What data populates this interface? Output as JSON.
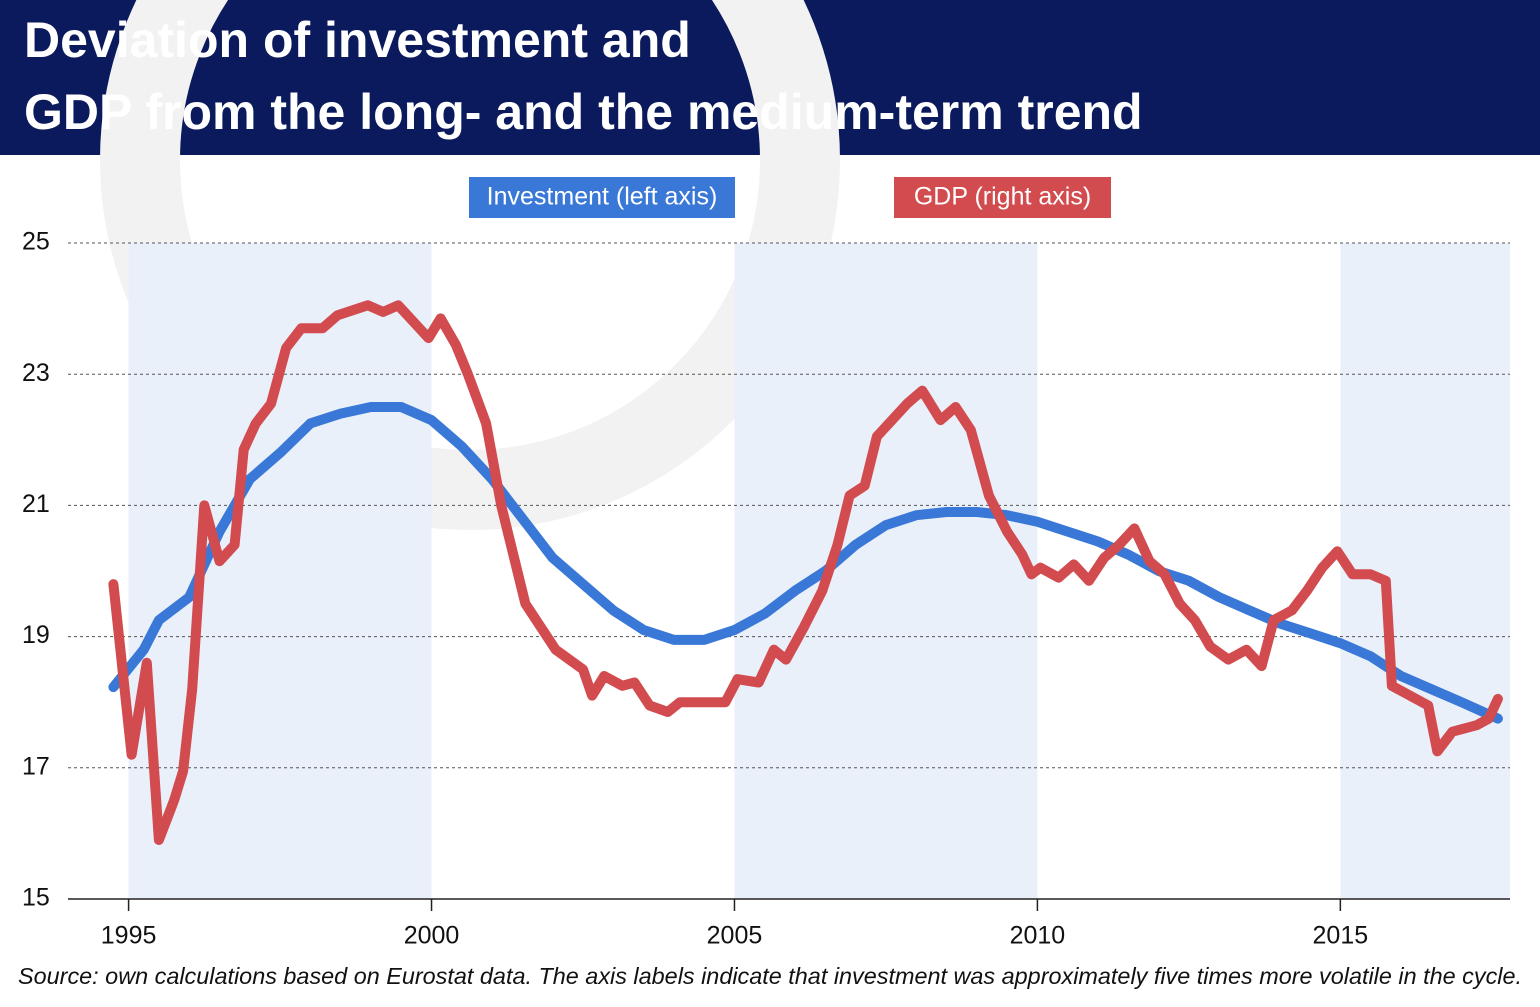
{
  "chart_data": {
    "type": "line",
    "title": "Deviation of investment and GDP from the long- and the medium-term trend",
    "source": "Source: own calculations based on Eurostat data. The axis labels indicate that investment was approximately five times more volatile in the cycle.",
    "xlim": [
      1994,
      2017.8
    ],
    "xticks": [
      1995,
      2000,
      2005,
      2010,
      2015
    ],
    "ylim": [
      15,
      25
    ],
    "yticks": [
      15,
      17,
      19,
      21,
      23,
      25
    ],
    "grid": true,
    "shaded_periods": [
      [
        1995,
        2000
      ],
      [
        2005,
        2010
      ],
      [
        2015,
        2017.8
      ]
    ],
    "series": [
      {
        "name": "Investment (left axis)",
        "color": "#3a78d8",
        "x": [
          1994.75,
          1995.25,
          1995.5,
          1996,
          1996.5,
          1997,
          1997.5,
          1998,
          1998.5,
          1999,
          1999.5,
          2000,
          2000.5,
          2001,
          2001.5,
          2002,
          2002.5,
          2003,
          2003.5,
          2004,
          2004.5,
          2005,
          2005.5,
          2006,
          2006.5,
          2007,
          2007.5,
          2008,
          2008.5,
          2009,
          2009.5,
          2010,
          2010.5,
          2011,
          2011.5,
          2012,
          2012.5,
          2013,
          2013.5,
          2014,
          2014.5,
          2015,
          2015.5,
          2016,
          2016.5,
          2017,
          2017.6
        ],
        "values": [
          18.23,
          18.8,
          19.25,
          19.6,
          20.6,
          21.4,
          21.8,
          22.25,
          22.4,
          22.5,
          22.5,
          22.3,
          21.9,
          21.4,
          20.8,
          20.2,
          19.8,
          19.4,
          19.1,
          18.95,
          18.95,
          19.1,
          19.35,
          19.7,
          20.0,
          20.4,
          20.7,
          20.85,
          20.9,
          20.9,
          20.85,
          20.75,
          20.6,
          20.45,
          20.25,
          20.0,
          19.85,
          19.6,
          19.4,
          19.2,
          19.05,
          18.9,
          18.7,
          18.4,
          18.2,
          18.0,
          17.75
        ]
      },
      {
        "name": "GDP (right axis)",
        "color": "#d24b4f",
        "x": [
          1994.75,
          1995.05,
          1995.3,
          1995.5,
          1995.75,
          1995.9,
          1996.05,
          1996.25,
          1996.5,
          1996.75,
          1996.9,
          1997.1,
          1997.35,
          1997.6,
          1997.85,
          1998.2,
          1998.45,
          1998.95,
          1999.2,
          1999.45,
          1999.65,
          1999.95,
          2000.15,
          2000.4,
          2000.6,
          2000.9,
          2001.15,
          2001.55,
          2002.05,
          2002.5,
          2002.65,
          2002.85,
          2003.15,
          2003.35,
          2003.6,
          2003.9,
          2004.1,
          2004.45,
          2004.85,
          2005.05,
          2005.4,
          2005.65,
          2005.85,
          2006.15,
          2006.45,
          2006.7,
          2006.9,
          2007.15,
          2007.35,
          2007.6,
          2007.85,
          2008.1,
          2008.4,
          2008.65,
          2008.9,
          2009.2,
          2009.5,
          2009.75,
          2009.9,
          2010.05,
          2010.35,
          2010.6,
          2010.85,
          2011.1,
          2011.35,
          2011.6,
          2011.85,
          2012.1,
          2012.35,
          2012.6,
          2012.85,
          2013.15,
          2013.45,
          2013.7,
          2013.9,
          2014.2,
          2014.45,
          2014.7,
          2014.95,
          2015.2,
          2015.5,
          2015.75,
          2015.85,
          2016.05,
          2016.45,
          2016.6,
          2016.85,
          2017.25,
          2017.45,
          2017.6
        ],
        "values": [
          19.8,
          17.2,
          18.6,
          15.9,
          16.5,
          16.95,
          18.2,
          21.0,
          20.15,
          20.4,
          21.85,
          22.25,
          22.55,
          23.4,
          23.7,
          23.7,
          23.9,
          24.05,
          23.95,
          24.05,
          23.85,
          23.55,
          23.85,
          23.45,
          23.0,
          22.25,
          21.0,
          19.5,
          18.8,
          18.5,
          18.1,
          18.4,
          18.25,
          18.3,
          17.95,
          17.85,
          18.0,
          18.0,
          18.0,
          18.35,
          18.3,
          18.8,
          18.65,
          19.15,
          19.7,
          20.4,
          21.15,
          21.3,
          22.05,
          22.3,
          22.55,
          22.75,
          22.3,
          22.5,
          22.15,
          21.15,
          20.6,
          20.25,
          19.95,
          20.05,
          19.9,
          20.1,
          19.85,
          20.2,
          20.4,
          20.65,
          20.15,
          19.95,
          19.5,
          19.25,
          18.85,
          18.65,
          18.8,
          18.55,
          19.25,
          19.4,
          19.7,
          20.05,
          20.3,
          19.95,
          19.95,
          19.85,
          18.25,
          18.15,
          17.95,
          17.25,
          17.55,
          17.65,
          17.75,
          18.05
        ]
      }
    ]
  }
}
